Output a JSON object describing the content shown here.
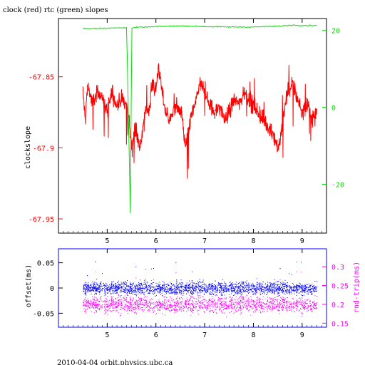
{
  "title": "clock (red) rtc (green) slopes",
  "footer": "2010-04-04 orbit.physics.ubc.ca",
  "colors": {
    "red": "#ff0000",
    "green": "#00e000",
    "blue": "#0000ff",
    "magenta": "#ff00ff",
    "axis": "#000000"
  },
  "chart_data": [
    {
      "type": "line",
      "ylabel": "clockslope",
      "xlim": [
        4.0,
        9.5
      ],
      "ylim": [
        -67.96,
        -67.809
      ],
      "x_ticks": [
        "5",
        "6",
        "7",
        "8",
        "9"
      ],
      "y_ticks": [
        "-67.85",
        "-67.9",
        "-67.95"
      ],
      "right_axis": {
        "ylim": [
          -32.7,
          23.1
        ],
        "ticks": [
          "20",
          "0",
          "-20"
        ]
      },
      "grid": false,
      "series": [
        {
          "color": "red",
          "axis": "left",
          "x": [
            4.5,
            4.55,
            4.6,
            4.7,
            4.8,
            4.9,
            5.0,
            5.1,
            5.2,
            5.3,
            5.4,
            5.45,
            5.5,
            5.55,
            5.6,
            5.65,
            5.7,
            5.75,
            5.8,
            5.85,
            5.9,
            5.95,
            6.0,
            6.05,
            6.1,
            6.15,
            6.2,
            6.3,
            6.4,
            6.5,
            6.55,
            6.6,
            6.65,
            6.7,
            6.8,
            6.9,
            7.0,
            7.1,
            7.2,
            7.3,
            7.4,
            7.5,
            7.6,
            7.7,
            7.8,
            7.9,
            8.0,
            8.1,
            8.2,
            8.3,
            8.4,
            8.5,
            8.55,
            8.6,
            8.7,
            8.8,
            8.9,
            9.0,
            9.1,
            9.2,
            9.3
          ],
          "y": [
            -67.86,
            -67.88,
            -67.855,
            -67.87,
            -67.86,
            -67.865,
            -67.875,
            -67.86,
            -67.87,
            -67.865,
            -67.87,
            -67.88,
            -67.9,
            -67.89,
            -67.885,
            -67.9,
            -67.895,
            -67.885,
            -67.87,
            -67.875,
            -67.86,
            -67.855,
            -67.86,
            -67.84,
            -67.855,
            -67.865,
            -67.875,
            -67.88,
            -67.87,
            -67.875,
            -67.88,
            -67.9,
            -67.895,
            -67.88,
            -67.87,
            -67.855,
            -67.86,
            -67.87,
            -67.875,
            -67.87,
            -67.88,
            -67.875,
            -67.865,
            -67.87,
            -67.86,
            -67.865,
            -67.87,
            -67.875,
            -67.88,
            -67.885,
            -67.89,
            -67.9,
            -67.895,
            -67.88,
            -67.86,
            -67.855,
            -67.865,
            -67.875,
            -67.87,
            -67.88,
            -67.875
          ]
        },
        {
          "color": "green",
          "axis": "right",
          "x": [
            4.5,
            5.0,
            5.4,
            5.48,
            5.5,
            5.6,
            6.0,
            6.5,
            7.0,
            7.5,
            8.0,
            8.5,
            8.8,
            9.0,
            9.3
          ],
          "y": [
            20.5,
            20.6,
            20.7,
            -30.0,
            20.6,
            20.8,
            21.0,
            21.2,
            21.0,
            20.9,
            20.9,
            21.1,
            21.4,
            21.3,
            21.3
          ]
        }
      ]
    },
    {
      "type": "scatter",
      "ylabel": "offset(ms)",
      "right_ylabel": "rnd-trip(ms)",
      "xlim": [
        4.0,
        9.5
      ],
      "ylim": [
        -0.0777,
        0.0777
      ],
      "x_ticks": [
        "5",
        "6",
        "7",
        "8",
        "9"
      ],
      "y_ticks": [
        "0.05",
        "0",
        "-0.05"
      ],
      "right_axis": {
        "ylim": [
          0.1393,
          0.3475
        ],
        "ticks": [
          "0.3",
          "0.25",
          "0.2",
          "0.15"
        ]
      },
      "grid": false,
      "series": [
        {
          "color": "blue",
          "axis": "left",
          "x_range": [
            4.5,
            9.3
          ],
          "center": 0.0,
          "spread": 0.012
        },
        {
          "color": "magenta",
          "axis": "right",
          "x_range": [
            4.5,
            9.3
          ],
          "center": 0.2,
          "spread": 0.02
        }
      ]
    }
  ]
}
